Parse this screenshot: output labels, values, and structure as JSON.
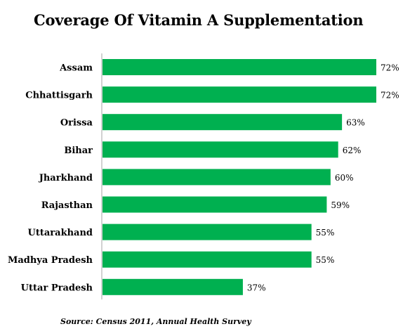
{
  "chart_data": {
    "type": "bar",
    "orientation": "horizontal",
    "title": "Coverage Of Vitamin A Supplementation",
    "categories": [
      "Assam",
      "Chhattisgarh",
      "Orissa",
      "Bihar",
      "Jharkhand",
      "Rajasthan",
      "Uttarakhand",
      "Madhya Pradesh",
      "Uttar Pradesh"
    ],
    "values": [
      72,
      72,
      63,
      62,
      60,
      59,
      55,
      55,
      37
    ],
    "value_labels": [
      "72%",
      "72%",
      "63%",
      "62%",
      "60%",
      "59%",
      "55%",
      "55%",
      "37%"
    ],
    "xlim": [
      0,
      72
    ],
    "grid": false,
    "bar_color": "#00b050",
    "source": "Source: Census 2011, Annual Health Survey"
  }
}
